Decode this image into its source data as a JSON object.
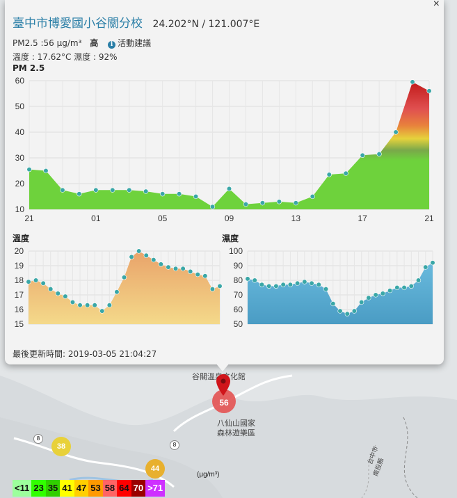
{
  "popup": {
    "station_name": "臺中市博愛國小谷關分校",
    "coordinates": "24.202°N / 121.007°E",
    "pm25_line": "PM2.5 :56 μg/m³",
    "level": "高",
    "activity_link": "活動建議",
    "weather_line": "溫度 : 17.62°C  濕度 : 92%",
    "pm25_chart_title": "PM 2.5",
    "temp_chart_title": "溫度",
    "humid_chart_title": "濕度",
    "updated": "最後更新時間: 2019-03-05 21:04:27",
    "close": "×"
  },
  "map": {
    "label_culture": "谷關溫泉文化館",
    "label_park_1": "八仙山國家",
    "label_park_2": "森林遊樂區",
    "label_road": "台中市",
    "label_road_2": "南投縣",
    "marker_value": "56",
    "bubble_a": "38",
    "bubble_b": "44",
    "shield_a": "8",
    "shield_b": "8",
    "unit": "(μg/m³)"
  },
  "legend": [
    {
      "label": "<11",
      "color": "#9cff9c"
    },
    {
      "label": "23",
      "color": "#31ff00"
    },
    {
      "label": "35",
      "color": "#31cf00"
    },
    {
      "label": "41",
      "color": "#ffff00"
    },
    {
      "label": "47",
      "color": "#ffcf00"
    },
    {
      "label": "53",
      "color": "#ff9a00"
    },
    {
      "label": "58",
      "color": "#ff6464"
    },
    {
      "label": "64",
      "color": "#ff0000"
    },
    {
      "label": "70",
      "color": "#990000"
    },
    {
      "label": ">71",
      "color": "#ce30ff"
    }
  ],
  "chart_data": [
    {
      "type": "area",
      "title": "PM 2.5",
      "x": [
        0,
        1,
        2,
        3,
        4,
        5,
        6,
        7,
        8,
        9,
        10,
        11,
        12,
        13,
        14,
        15,
        16,
        17,
        18,
        19,
        20,
        21,
        22,
        23,
        24
      ],
      "xticks": [
        {
          "x": 0,
          "label": "21"
        },
        {
          "x": 4,
          "label": "01"
        },
        {
          "x": 8,
          "label": "05"
        },
        {
          "x": 12,
          "label": "09"
        },
        {
          "x": 16,
          "label": "13"
        },
        {
          "x": 20,
          "label": "17"
        },
        {
          "x": 24,
          "label": "21"
        }
      ],
      "values": [
        25.5,
        25,
        17.5,
        16,
        17.5,
        17.5,
        17.5,
        17,
        16,
        16,
        15,
        11,
        18,
        12,
        12.5,
        13,
        12.5,
        15,
        23.5,
        24,
        31,
        31.5,
        40,
        59.5,
        56
      ],
      "ylim": [
        10,
        60
      ],
      "yticks": [
        10,
        20,
        30,
        40,
        50,
        60
      ],
      "grid": true
    },
    {
      "type": "area",
      "title": "溫度",
      "values": [
        17.9,
        18,
        17.8,
        17.4,
        17.1,
        16.9,
        16.5,
        16.3,
        16.3,
        16.3,
        15.9,
        16.3,
        17.2,
        18.2,
        19.6,
        20,
        19.7,
        19.4,
        19.1,
        18.9,
        18.8,
        18.8,
        18.6,
        18.4,
        18.3,
        17.4,
        17.6
      ],
      "ylim": [
        15,
        20
      ],
      "yticks": [
        15,
        16,
        17,
        18,
        19,
        20
      ],
      "grid": true
    },
    {
      "type": "area",
      "title": "濕度",
      "values": [
        81,
        80,
        77,
        76,
        76,
        77,
        77,
        78,
        79,
        78,
        77,
        74,
        64,
        59,
        57,
        59,
        65,
        68,
        70,
        71,
        73,
        75,
        75,
        76,
        80,
        89,
        92
      ],
      "ylim": [
        50,
        100
      ],
      "yticks": [
        50,
        60,
        70,
        80,
        90,
        100
      ],
      "grid": true
    }
  ]
}
